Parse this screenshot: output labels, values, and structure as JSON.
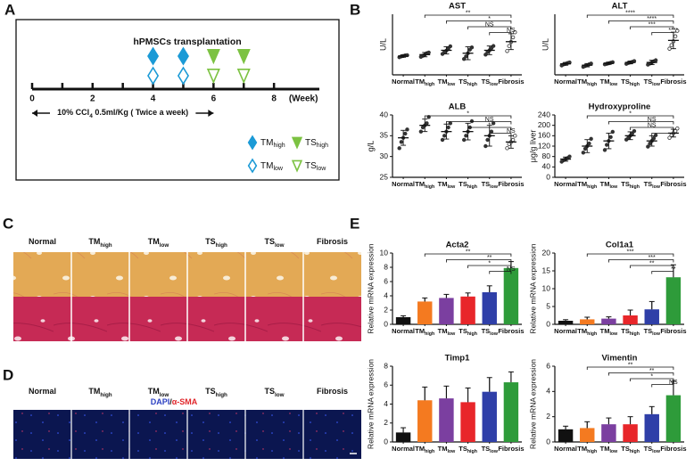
{
  "panels": [
    "A",
    "B",
    "C",
    "D",
    "E"
  ],
  "timeline": {
    "title": "hPMSCs transplantation",
    "axis_label": "(Week)",
    "xlim": [
      0,
      9.5
    ],
    "xticks": [
      0,
      2,
      4,
      6,
      8
    ],
    "minor_ticks": [
      1,
      3,
      5,
      7
    ],
    "ccl4": {
      "pre": "10% CCl",
      "sub": "4",
      "post": " 0.5ml/Kg  ( Twice a week)",
      "weeks": [
        0,
        6
      ]
    },
    "groups": [
      {
        "base": "TM",
        "sub": "high",
        "weeks": [
          4,
          5
        ],
        "color": "#1b9ad6",
        "marker": "diamond",
        "open": false
      },
      {
        "base": "TM",
        "sub": "low",
        "weeks": [
          4,
          5
        ],
        "color": "#1b9ad6",
        "marker": "diamond",
        "open": true
      },
      {
        "base": "TS",
        "sub": "high",
        "weeks": [
          6,
          7
        ],
        "color": "#7cc242",
        "marker": "triangle",
        "open": false
      },
      {
        "base": "TS",
        "sub": "low",
        "weeks": [
          6,
          7
        ],
        "color": "#7cc242",
        "marker": "triangle",
        "open": true
      }
    ]
  },
  "histology": {
    "labels": [
      {
        "base": "Normal"
      },
      {
        "base": "TM",
        "sub": "high"
      },
      {
        "base": "TM",
        "sub": "low"
      },
      {
        "base": "TS",
        "sub": "high"
      },
      {
        "base": "TS",
        "sub": "low"
      },
      {
        "base": "Fibrosis"
      }
    ]
  },
  "fluorescence": {
    "labels": [
      {
        "base": "Normal"
      },
      {
        "base": "TM",
        "sub": "high"
      },
      {
        "base": "TM",
        "sub": "low"
      },
      {
        "base": "TS",
        "sub": "high"
      },
      {
        "base": "TS",
        "sub": "low"
      },
      {
        "base": "Fibrosis"
      }
    ],
    "stain": {
      "a": "DAPI",
      "sep": "/",
      "b": "α-SMA"
    }
  },
  "chart_data": [
    {
      "type": "dot",
      "title": "AST",
      "y_label": "U/L",
      "color": "#333333",
      "categories": [
        {
          "base": "Normal"
        },
        {
          "base": "TM",
          "sub": "high"
        },
        {
          "base": "TM",
          "sub": "low"
        },
        {
          "base": "TS",
          "sub": "high"
        },
        {
          "base": "TS",
          "sub": "low"
        },
        {
          "base": "Fibrosis"
        }
      ],
      "values": [
        130,
        140,
        170,
        150,
        170,
        230
      ],
      "errors": [
        8,
        15,
        25,
        45,
        30,
        55
      ],
      "points": [
        [
          122,
          128,
          131,
          135,
          136
        ],
        [
          125,
          132,
          140,
          150,
          155
        ],
        [
          145,
          158,
          168,
          182,
          198
        ],
        [
          110,
          128,
          150,
          175,
          190
        ],
        [
          140,
          158,
          170,
          185,
          200
        ],
        [
          165,
          200,
          228,
          260,
          295
        ]
      ],
      "ylim": [
        0,
        420
      ],
      "comparisons": [
        {
          "groups": [
            1,
            5
          ],
          "label": "**"
        },
        {
          "groups": [
            2,
            5
          ],
          "label": "*"
        },
        {
          "groups": [
            3,
            5
          ],
          "label": "NS"
        },
        {
          "groups": [
            4,
            5
          ],
          "label": "NS"
        }
      ]
    },
    {
      "type": "dot",
      "title": "ALT",
      "y_label": "U/L",
      "color": "#333333",
      "categories": [
        {
          "base": "Normal"
        },
        {
          "base": "TM",
          "sub": "high"
        },
        {
          "base": "TM",
          "sub": "low"
        },
        {
          "base": "TS",
          "sub": "high"
        },
        {
          "base": "TS",
          "sub": "low"
        },
        {
          "base": "Fibrosis"
        }
      ],
      "values": [
        40,
        35,
        42,
        45,
        45,
        125
      ],
      "errors": [
        5,
        6,
        4,
        5,
        8,
        30
      ],
      "points": [
        [
          34,
          38,
          40,
          43,
          45
        ],
        [
          29,
          32,
          35,
          38,
          41
        ],
        [
          38,
          40,
          42,
          44,
          46
        ],
        [
          40,
          43,
          45,
          47,
          50
        ],
        [
          37,
          41,
          45,
          49,
          53
        ],
        [
          95,
          108,
          122,
          140,
          160
        ]
      ],
      "ylim": [
        0,
        220
      ],
      "comparisons": [
        {
          "groups": [
            1,
            5
          ],
          "label": "****"
        },
        {
          "groups": [
            2,
            5
          ],
          "label": "****"
        },
        {
          "groups": [
            3,
            5
          ],
          "label": "***"
        },
        {
          "groups": [
            4,
            5
          ],
          "label": "****"
        }
      ]
    },
    {
      "type": "dot",
      "title": "ALB",
      "y_label": "g/L",
      "color": "#333333",
      "categories": [
        {
          "base": "Normal"
        },
        {
          "base": "TM",
          "sub": "high"
        },
        {
          "base": "TM",
          "sub": "low"
        },
        {
          "base": "TS",
          "sub": "high"
        },
        {
          "base": "TS",
          "sub": "low"
        },
        {
          "base": "Fibrosis"
        }
      ],
      "values": [
        34.5,
        37.5,
        36,
        36,
        35,
        33.5
      ],
      "errors": [
        1.8,
        1.5,
        1.8,
        2,
        2.5,
        1.5
      ],
      "points": [
        [
          32,
          33.5,
          34.5,
          35.5,
          36.5
        ],
        [
          36,
          37,
          37.5,
          38,
          39.5
        ],
        [
          34,
          35,
          36,
          37,
          38
        ],
        [
          34,
          35,
          36,
          37,
          38.5
        ],
        [
          32.5,
          34,
          35,
          36,
          38
        ],
        [
          32,
          33,
          33.5,
          34,
          35
        ]
      ],
      "ylim": [
        25,
        40
      ],
      "yticks": [
        25,
        30,
        35,
        40
      ],
      "comparisons": [
        {
          "groups": [
            1,
            5
          ],
          "label": "*"
        },
        {
          "groups": [
            2,
            5
          ],
          "label": "NS"
        },
        {
          "groups": [
            3,
            5
          ],
          "label": "*"
        },
        {
          "groups": [
            4,
            5
          ],
          "label": "NS"
        }
      ]
    },
    {
      "type": "dot",
      "title": "Hydroxyproline",
      "y_label": "μg/g liver",
      "color": "#333333",
      "categories": [
        {
          "base": "Normal"
        },
        {
          "base": "TM",
          "sub": "high"
        },
        {
          "base": "TM",
          "sub": "low"
        },
        {
          "base": "TS",
          "sub": "high"
        },
        {
          "base": "TS",
          "sub": "low"
        },
        {
          "base": "Fibrosis"
        }
      ],
      "values": [
        70,
        120,
        140,
        160,
        140,
        170
      ],
      "errors": [
        8,
        25,
        30,
        15,
        20,
        15
      ],
      "points": [
        [
          60,
          66,
          70,
          74,
          80
        ],
        [
          95,
          110,
          120,
          130,
          148
        ],
        [
          105,
          125,
          140,
          155,
          175
        ],
        [
          145,
          152,
          160,
          168,
          178
        ],
        [
          118,
          130,
          140,
          150,
          162
        ],
        [
          152,
          162,
          170,
          178,
          188
        ]
      ],
      "ylim": [
        0,
        240
      ],
      "yticks": [
        0,
        40,
        80,
        120,
        160,
        200,
        240
      ],
      "comparisons": [
        {
          "groups": [
            1,
            5
          ],
          "label": "*"
        },
        {
          "groups": [
            2,
            5
          ],
          "label": "NS"
        },
        {
          "groups": [
            3,
            5
          ],
          "label": "NS"
        },
        {
          "groups": [
            4,
            5
          ],
          "label": "*"
        }
      ]
    },
    {
      "type": "bar",
      "title": "Acta2",
      "y_label": "Relative mRNA expression",
      "categories": [
        {
          "base": "Normal"
        },
        {
          "base": "TM",
          "sub": "high"
        },
        {
          "base": "TM",
          "sub": "low"
        },
        {
          "base": "TS",
          "sub": "high"
        },
        {
          "base": "TS",
          "sub": "low"
        },
        {
          "base": "Fibrosis"
        }
      ],
      "colors": [
        "#111111",
        "#f47a20",
        "#7b3fa0",
        "#e8262a",
        "#2f3fa8",
        "#2e9b3a"
      ],
      "values": [
        1.0,
        3.2,
        3.7,
        3.9,
        4.5,
        7.9
      ],
      "errors": [
        0.2,
        0.5,
        0.5,
        0.5,
        0.9,
        0.9
      ],
      "ylim": [
        0,
        10
      ],
      "yticks": [
        0,
        2,
        4,
        6,
        8,
        10
      ],
      "comparisons": [
        {
          "groups": [
            1,
            5
          ],
          "label": "**"
        },
        {
          "groups": [
            2,
            5
          ],
          "label": "**"
        },
        {
          "groups": [
            3,
            5
          ],
          "label": "*"
        },
        {
          "groups": [
            4,
            5
          ],
          "label": "NS"
        }
      ]
    },
    {
      "type": "bar",
      "title": "Col1a1",
      "y_label": "Relative mRNA expression",
      "categories": [
        {
          "base": "Normal"
        },
        {
          "base": "TM",
          "sub": "high"
        },
        {
          "base": "TM",
          "sub": "low"
        },
        {
          "base": "TS",
          "sub": "high"
        },
        {
          "base": "TS",
          "sub": "low"
        },
        {
          "base": "Fibrosis"
        }
      ],
      "colors": [
        "#111111",
        "#f47a20",
        "#7b3fa0",
        "#e8262a",
        "#2f3fa8",
        "#2e9b3a"
      ],
      "values": [
        1.0,
        1.4,
        1.6,
        2.5,
        4.2,
        13.2
      ],
      "errors": [
        0.3,
        0.6,
        0.5,
        1.5,
        2.2,
        3.5
      ],
      "ylim": [
        0,
        20
      ],
      "yticks": [
        0,
        5,
        10,
        15,
        20
      ],
      "comparisons": [
        {
          "groups": [
            1,
            5
          ],
          "label": "***"
        },
        {
          "groups": [
            2,
            5
          ],
          "label": "***"
        },
        {
          "groups": [
            3,
            5
          ],
          "label": "**"
        },
        {
          "groups": [
            4,
            5
          ],
          "label": "**"
        }
      ]
    },
    {
      "type": "bar",
      "title": "Timp1",
      "y_label": "Relative mRNA expression",
      "categories": [
        {
          "base": "Normal"
        },
        {
          "base": "TM",
          "sub": "high"
        },
        {
          "base": "TM",
          "sub": "low"
        },
        {
          "base": "TS",
          "sub": "high"
        },
        {
          "base": "TS",
          "sub": "low"
        },
        {
          "base": "Fibrosis"
        }
      ],
      "colors": [
        "#111111",
        "#f47a20",
        "#7b3fa0",
        "#e8262a",
        "#2f3fa8",
        "#2e9b3a"
      ],
      "values": [
        1.0,
        4.4,
        4.6,
        4.2,
        5.3,
        6.3
      ],
      "errors": [
        0.5,
        1.4,
        1.3,
        1.5,
        1.5,
        1.1
      ],
      "ylim": [
        0,
        8
      ],
      "yticks": [
        0,
        2,
        4,
        6,
        8
      ],
      "comparisons": []
    },
    {
      "type": "bar",
      "title": "Vimentin",
      "y_label": "Relative mRNA expression",
      "categories": [
        {
          "base": "Normal"
        },
        {
          "base": "TM",
          "sub": "high"
        },
        {
          "base": "TM",
          "sub": "low"
        },
        {
          "base": "TS",
          "sub": "high"
        },
        {
          "base": "TS",
          "sub": "low"
        },
        {
          "base": "Fibrosis"
        }
      ],
      "colors": [
        "#111111",
        "#f47a20",
        "#7b3fa0",
        "#e8262a",
        "#2f3fa8",
        "#2e9b3a"
      ],
      "values": [
        1.0,
        1.1,
        1.4,
        1.4,
        2.2,
        3.7
      ],
      "errors": [
        0.25,
        0.5,
        0.5,
        0.6,
        0.6,
        1.1
      ],
      "ylim": [
        0,
        6
      ],
      "yticks": [
        0,
        2,
        4,
        6
      ],
      "comparisons": [
        {
          "groups": [
            1,
            5
          ],
          "label": "**"
        },
        {
          "groups": [
            2,
            5
          ],
          "label": "**"
        },
        {
          "groups": [
            3,
            5
          ],
          "label": "*"
        },
        {
          "groups": [
            4,
            5
          ],
          "label": "NS"
        }
      ]
    }
  ]
}
